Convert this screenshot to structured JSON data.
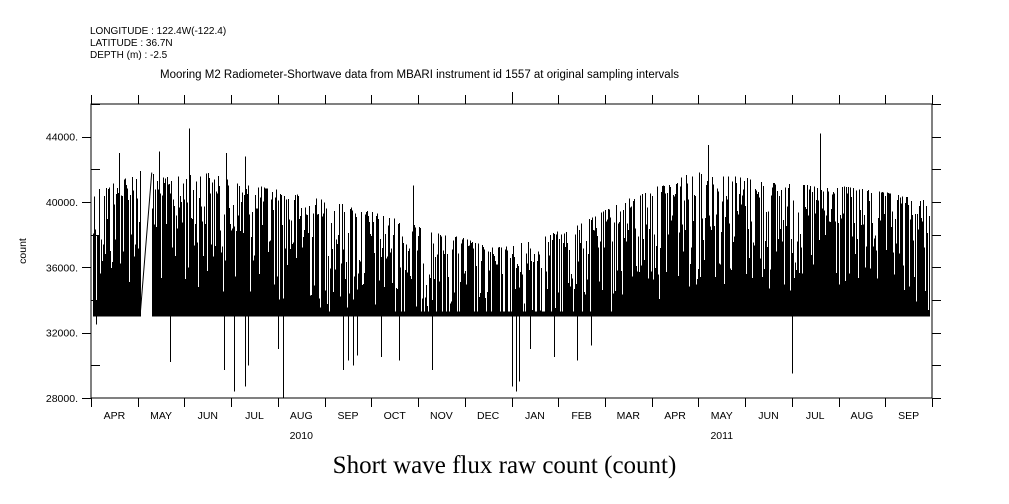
{
  "header": {
    "longitude": "LONGITUDE : 122.4W(-122.4)",
    "latitude": "LATITUDE : 36.7N",
    "depth": "DEPTH (m) : -2.5"
  },
  "chart_data": {
    "type": "bar",
    "title": "Mooring M2 Radiometer-Shortwave data from MBARI instrument id 1557 at original sampling intervals",
    "xlabel": "Short wave flux raw count (count)",
    "ylabel": "count",
    "ylim": [
      28000,
      46000
    ],
    "yticks": [
      28000,
      32000,
      36000,
      40000,
      44000
    ],
    "ytick_labels": [
      "28000.",
      "32000.",
      "36000.",
      "40000.",
      "44000."
    ],
    "y_minor_step": 2000,
    "x_range": [
      "2010-04-01",
      "2011-10-01"
    ],
    "month_labels": [
      "APR",
      "MAY",
      "JUN",
      "JUL",
      "AUG",
      "SEP",
      "OCT",
      "NOV",
      "DEC",
      "JAN",
      "FEB",
      "MAR",
      "APR",
      "MAY",
      "JUN",
      "JUL",
      "AUG",
      "SEP"
    ],
    "year_labels": [
      {
        "label": "2010",
        "month_index": 4.5
      },
      {
        "label": "2011",
        "month_index": 13.5
      }
    ],
    "baseline": 33000,
    "envelope_month_index": [
      0,
      0.5,
      1,
      1.3,
      1.5,
      2,
      2.5,
      3,
      3.5,
      4,
      4.5,
      5,
      5.5,
      6,
      6.5,
      7,
      7.5,
      8,
      8.5,
      9,
      9.5,
      10,
      10.5,
      11,
      11.5,
      12,
      12.5,
      13,
      13.5,
      14,
      14.5,
      15,
      15.5,
      16,
      16.5,
      17,
      17.5,
      18
    ],
    "envelope_max": [
      40800,
      41200,
      42000,
      41800,
      41500,
      41600,
      41800,
      41300,
      41000,
      40800,
      40400,
      40100,
      39800,
      39400,
      39000,
      38500,
      38000,
      37800,
      37200,
      37300,
      37800,
      38200,
      38700,
      39500,
      40200,
      40800,
      41500,
      41800,
      41700,
      41500,
      41200,
      41100,
      41000,
      41000,
      40800,
      40600,
      40300,
      40000
    ],
    "data_gap_month_index": [
      1.05,
      1.3
    ],
    "spikes": [
      {
        "month_index": 0.6,
        "value": 43000
      },
      {
        "month_index": 1.45,
        "value": 43100
      },
      {
        "month_index": 2.1,
        "value": 44500
      },
      {
        "month_index": 2.9,
        "value": 43000
      },
      {
        "month_index": 3.3,
        "value": 42800
      },
      {
        "month_index": 13.2,
        "value": 43500
      },
      {
        "month_index": 15.6,
        "value": 44200
      },
      {
        "month_index": 6.9,
        "value": 41000
      }
    ],
    "dips": [
      {
        "month_index": 0.1,
        "value": 32500
      },
      {
        "month_index": 1.7,
        "value": 30200
      },
      {
        "month_index": 2.85,
        "value": 29700
      },
      {
        "month_index": 3.05,
        "value": 28400
      },
      {
        "month_index": 3.3,
        "value": 28700
      },
      {
        "month_index": 3.35,
        "value": 30000
      },
      {
        "month_index": 4.1,
        "value": 28000
      },
      {
        "month_index": 4.0,
        "value": 31000
      },
      {
        "month_index": 5.4,
        "value": 29700
      },
      {
        "month_index": 5.5,
        "value": 30300
      },
      {
        "month_index": 5.6,
        "value": 30000
      },
      {
        "month_index": 5.7,
        "value": 30600
      },
      {
        "month_index": 6.2,
        "value": 30500
      },
      {
        "month_index": 6.6,
        "value": 30300
      },
      {
        "month_index": 7.3,
        "value": 29700
      },
      {
        "month_index": 9.0,
        "value": 28700
      },
      {
        "month_index": 9.1,
        "value": 28400
      },
      {
        "month_index": 9.15,
        "value": 29000
      },
      {
        "month_index": 9.4,
        "value": 31000
      },
      {
        "month_index": 9.9,
        "value": 30500
      },
      {
        "month_index": 10.4,
        "value": 30300
      },
      {
        "month_index": 10.7,
        "value": 31200
      },
      {
        "month_index": 15.0,
        "value": 29500
      }
    ],
    "grid": false
  }
}
